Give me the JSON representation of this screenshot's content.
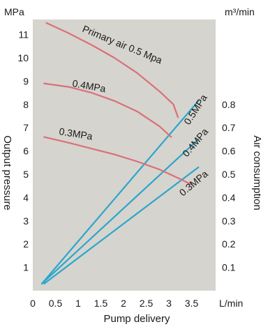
{
  "chart_data": {
    "type": "line",
    "xlabel": "Pump delivery",
    "xunit": "L/min",
    "ylabel_left": "Output pressure",
    "yunit_left": "MPa",
    "ylabel_right": "Air consumption",
    "yunit_right": "m³/min",
    "xlim": [
      0,
      3.75
    ],
    "ylim_left": [
      0,
      12
    ],
    "ylim_right": [
      0,
      1.2
    ],
    "x_ticks": [
      "0",
      "0.5",
      "1",
      "1.5",
      "2",
      "2.5",
      "3",
      "3.5"
    ],
    "y_left_ticks": [
      "1",
      "2",
      "3",
      "4",
      "5",
      "6",
      "7",
      "8",
      "9",
      "10",
      "11"
    ],
    "y_right_ticks": [
      "0.1",
      "0.2",
      "0.3",
      "0.4",
      "0.5",
      "0.6",
      "0.7",
      "0.8"
    ],
    "grid": false,
    "colors": {
      "background": "#d6d4ce",
      "pressure": "#d9707a",
      "air": "#2aa6cc"
    },
    "pressure_series": [
      {
        "name": "Primary air 0.5 Mpa",
        "axis": "left",
        "x": [
          0.3,
          0.8,
          1.3,
          1.8,
          2.3,
          2.8,
          3.1,
          3.2
        ],
        "y": [
          11.5,
          11.05,
          10.55,
          10.0,
          9.35,
          8.55,
          8.0,
          7.45
        ]
      },
      {
        "name": "0.4MPa",
        "axis": "left",
        "x": [
          0.25,
          0.8,
          1.3,
          1.8,
          2.3,
          2.8,
          3.05
        ],
        "y": [
          8.9,
          8.75,
          8.5,
          8.15,
          7.7,
          7.05,
          6.6
        ]
      },
      {
        "name": "0.3MPa",
        "axis": "left",
        "x": [
          0.25,
          0.8,
          1.3,
          1.8,
          2.3,
          2.8,
          3.3,
          3.5
        ],
        "y": [
          6.6,
          6.35,
          6.1,
          5.85,
          5.55,
          5.2,
          4.75,
          4.55
        ]
      }
    ],
    "air_series": [
      {
        "name": "0.5MPa",
        "axis": "right",
        "x": [
          0.2,
          3.65
        ],
        "y": [
          0.03,
          0.815
        ]
      },
      {
        "name": "0.4MPa",
        "axis": "right",
        "x": [
          0.2,
          3.65
        ],
        "y": [
          0.03,
          0.65
        ]
      },
      {
        "name": "0.3MPa",
        "axis": "right",
        "x": [
          0.25,
          3.65
        ],
        "y": [
          0.03,
          0.53
        ]
      }
    ]
  }
}
